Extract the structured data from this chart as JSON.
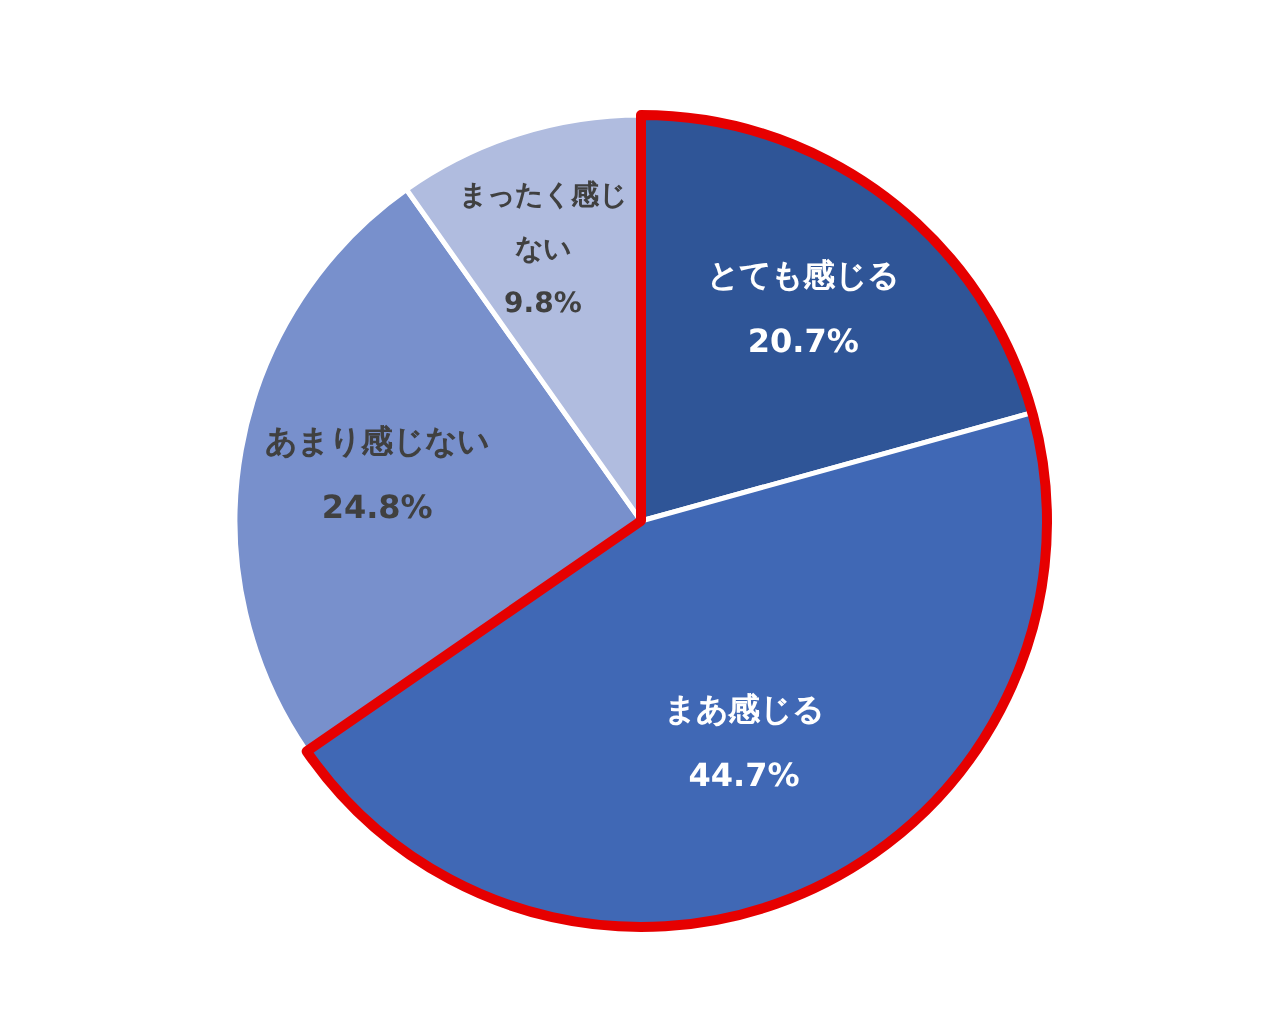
{
  "chart_data": {
    "type": "pie",
    "categories": [
      "とても感じる",
      "まあ感じる",
      "あまり感じない",
      "まったく感じない"
    ],
    "values": [
      20.7,
      44.7,
      24.8,
      9.8
    ],
    "value_labels": [
      "20.7%",
      "44.7%",
      "24.8%",
      "9.8%"
    ],
    "colors": [
      "#2f5597",
      "#4068b5",
      "#7890cc",
      "#b0bcdf"
    ]
  }
}
